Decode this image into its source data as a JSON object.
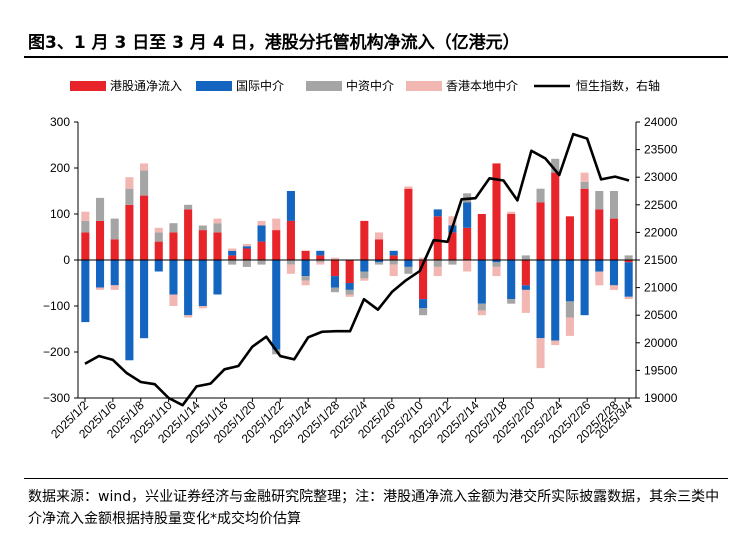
{
  "title": "图3、1 月 3 日至 3 月 4 日，港股分托管机构净流入（亿港元）",
  "footnote": "数据来源：wind，兴业证券经济与金融研究院整理；注：港股通净流入金额为港交所实际披露数据，其余三类中介净流入金额根据持股量变化*成交均价估算",
  "chart_data": {
    "type": "bar",
    "stacked": true,
    "title": "1 月 3 日至 3 月 4 日，港股分托管机构净流入（亿港元）",
    "ylim": [
      -300,
      300
    ],
    "yticks": [
      300,
      200,
      100,
      0,
      -100,
      -200,
      -300
    ],
    "y2lim": [
      19000,
      24000
    ],
    "y2ticks": [
      24000,
      23500,
      23000,
      22500,
      22000,
      21500,
      21000,
      20500,
      20000,
      19500,
      19000
    ],
    "x_tick_labels": [
      "2025/1/2",
      "2025/1/6",
      "2025/1/8",
      "2025/1/10",
      "2025/1/14",
      "2025/1/16",
      "2025/1/20",
      "2025/1/22",
      "2025/1/24",
      "2025/1/28",
      "2025/2/4",
      "2025/2/6",
      "2025/2/10",
      "2025/2/12",
      "2025/2/14",
      "2025/2/18",
      "2025/2/20",
      "2025/2/24",
      "2025/2/26",
      "2025/2/28",
      "2025/3/4"
    ],
    "legend": [
      {
        "name": "港股通净流入",
        "color": "#e8242b",
        "kind": "bar"
      },
      {
        "name": "国际中介",
        "color": "#1465c0",
        "kind": "bar"
      },
      {
        "name": "中资中介",
        "color": "#a5a5a5",
        "kind": "bar"
      },
      {
        "name": "香港本地中介",
        "color": "#f3b7b3",
        "kind": "bar"
      },
      {
        "name": "恒生指数，右轴",
        "color": "#000000",
        "kind": "line"
      }
    ],
    "series": [
      {
        "name": "港股通净流入",
        "values": [
          60,
          85,
          45,
          120,
          140,
          40,
          60,
          110,
          65,
          60,
          10,
          25,
          40,
          65,
          85,
          20,
          10,
          -35,
          -50,
          85,
          45,
          10,
          155,
          -85,
          95,
          60,
          70,
          100,
          210,
          100,
          -55,
          125,
          190,
          95,
          155,
          110,
          90,
          -5
        ]
      },
      {
        "name": "国际中介",
        "values": [
          -135,
          -60,
          -55,
          -218,
          -170,
          -25,
          -75,
          -120,
          -100,
          -75,
          10,
          5,
          35,
          -195,
          65,
          -35,
          10,
          -25,
          -15,
          -25,
          -5,
          10,
          -15,
          -20,
          15,
          15,
          55,
          -95,
          -5,
          -85,
          -10,
          -170,
          -175,
          -90,
          -120,
          -25,
          -55,
          -75
        ]
      },
      {
        "name": "中资中介",
        "values": [
          25,
          50,
          45,
          35,
          55,
          20,
          20,
          10,
          10,
          20,
          -10,
          -15,
          -10,
          -10,
          -10,
          -10,
          -5,
          -10,
          -10,
          -15,
          -5,
          -10,
          -15,
          -15,
          -15,
          -10,
          20,
          -15,
          -10,
          -10,
          10,
          30,
          30,
          -35,
          15,
          40,
          60,
          10
        ]
      },
      {
        "name": "香港本地中介",
        "values": [
          20,
          -5,
          -10,
          25,
          15,
          10,
          -25,
          -5,
          -5,
          10,
          5,
          5,
          10,
          25,
          -20,
          -10,
          -5,
          5,
          -5,
          -5,
          15,
          -25,
          5,
          5,
          -20,
          20,
          -25,
          -10,
          -20,
          5,
          -50,
          -65,
          -10,
          -40,
          20,
          -30,
          -10,
          -5
        ]
      },
      {
        "name": "恒生指数，右轴",
        "values": [
          19620,
          19760,
          19690,
          19450,
          19290,
          19250,
          19000,
          18870,
          19210,
          19260,
          19520,
          19580,
          19930,
          20110,
          19760,
          19700,
          20100,
          20200,
          20210,
          20210,
          20790,
          20600,
          20920,
          21130,
          21300,
          21860,
          21830,
          22600,
          22620,
          22980,
          22940,
          22580,
          23480,
          23340,
          23040,
          23780,
          23700,
          22960,
          23010,
          22940
        ]
      }
    ],
    "index_markers": [
      0,
      2,
      4,
      6,
      8,
      10,
      12,
      14,
      16,
      18,
      20,
      22,
      24,
      26,
      28,
      30,
      32,
      34,
      36,
      38,
      39
    ]
  }
}
